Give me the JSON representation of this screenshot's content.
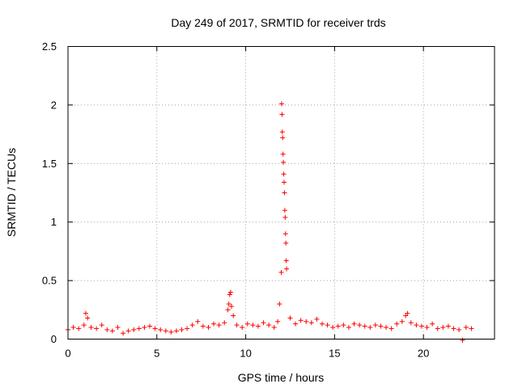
{
  "chart_data": {
    "type": "scatter",
    "title": "Day 249 of 2017, SRMTID for receiver trds",
    "xlabel": "GPS time / hours",
    "ylabel": "SRMTID / TECUs",
    "xlim": [
      0,
      24
    ],
    "ylim": [
      0,
      2.5
    ],
    "xticks": [
      0,
      5,
      10,
      15,
      20
    ],
    "xtick_labels": [
      "0",
      "5",
      "10",
      "15",
      "20"
    ],
    "yticks": [
      0,
      0.5,
      1,
      1.5,
      2,
      2.5
    ],
    "ytick_labels": [
      "0",
      "0.5",
      "1",
      "1.5",
      "2",
      "2.5"
    ],
    "grid": true,
    "marker": "+",
    "color": "#ff0000",
    "series": [
      {
        "name": "SRMTID",
        "x": [
          0.0,
          0.3,
          0.6,
          0.9,
          1.0,
          1.1,
          1.3,
          1.6,
          1.9,
          2.2,
          2.5,
          2.8,
          3.1,
          3.4,
          3.7,
          4.0,
          4.3,
          4.6,
          4.9,
          5.2,
          5.5,
          5.8,
          6.1,
          6.4,
          6.7,
          7.0,
          7.3,
          7.6,
          7.9,
          8.2,
          8.5,
          8.8,
          9.0,
          9.05,
          9.1,
          9.15,
          9.2,
          9.3,
          9.5,
          9.8,
          10.1,
          10.4,
          10.7,
          11.0,
          11.3,
          11.6,
          11.8,
          11.9,
          12.0,
          12.02,
          12.04,
          12.06,
          12.08,
          12.1,
          12.12,
          12.14,
          12.16,
          12.18,
          12.2,
          12.22,
          12.24,
          12.26,
          12.28,
          12.3,
          12.5,
          12.8,
          13.1,
          13.4,
          13.7,
          14.0,
          14.3,
          14.6,
          14.9,
          15.2,
          15.5,
          15.8,
          16.1,
          16.4,
          16.7,
          17.0,
          17.3,
          17.6,
          17.9,
          18.2,
          18.5,
          18.8,
          19.0,
          19.1,
          19.3,
          19.6,
          19.9,
          20.2,
          20.5,
          20.8,
          21.1,
          21.4,
          21.7,
          22.0,
          22.2,
          22.4,
          22.7
        ],
        "y": [
          0.08,
          0.1,
          0.09,
          0.12,
          0.22,
          0.18,
          0.1,
          0.09,
          0.12,
          0.08,
          0.07,
          0.1,
          0.05,
          0.07,
          0.08,
          0.09,
          0.1,
          0.11,
          0.09,
          0.08,
          0.07,
          0.06,
          0.07,
          0.08,
          0.09,
          0.12,
          0.15,
          0.11,
          0.1,
          0.13,
          0.12,
          0.14,
          0.25,
          0.3,
          0.38,
          0.4,
          0.28,
          0.2,
          0.12,
          0.1,
          0.13,
          0.12,
          0.11,
          0.14,
          0.12,
          0.1,
          0.15,
          0.3,
          0.57,
          2.01,
          1.92,
          1.77,
          1.72,
          1.58,
          1.51,
          1.41,
          1.34,
          1.25,
          1.1,
          1.04,
          0.9,
          0.82,
          0.67,
          0.6,
          0.18,
          0.13,
          0.16,
          0.15,
          0.14,
          0.17,
          0.13,
          0.12,
          0.1,
          0.11,
          0.12,
          0.1,
          0.13,
          0.12,
          0.11,
          0.1,
          0.12,
          0.11,
          0.1,
          0.09,
          0.13,
          0.15,
          0.2,
          0.22,
          0.14,
          0.12,
          0.11,
          0.1,
          0.13,
          0.09,
          0.1,
          0.11,
          0.09,
          0.08,
          -0.01,
          0.1,
          0.09
        ]
      }
    ]
  }
}
